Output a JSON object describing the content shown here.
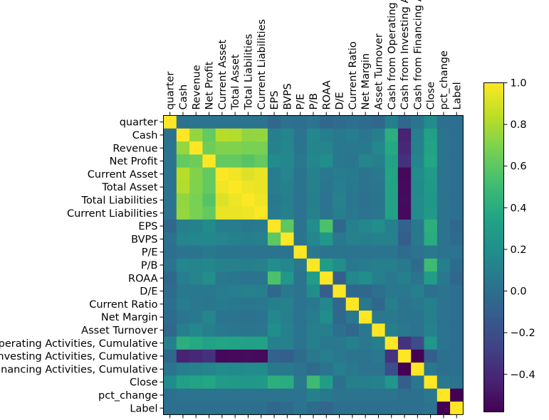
{
  "chart_data": {
    "type": "heatmap",
    "title": "",
    "xlabel": "",
    "ylabel": "",
    "x_tick_labels": [
      "quarter",
      "Cash",
      "Revenue",
      "Net Profit",
      "Current Asset",
      "Total Asset",
      "Total Liabilities",
      "Current Liabilities",
      "EPS",
      "BVPS",
      "P/E",
      "P/B",
      "ROAA",
      "D/E",
      "Current Ratio",
      "Net Margin",
      "Asset Turnover",
      "Cash from Operating Activities, Cumulative",
      "Cash from Investing Activities, Cumulative",
      "Cash from Financing Activities, Cumulative",
      "Close",
      "pct_change",
      "Label"
    ],
    "y_tick_labels": [
      "quarter",
      "Cash",
      "Revenue",
      "Net Profit",
      "Current Asset",
      "Total Asset",
      "Total Liabilities",
      "Current Liabilities",
      "EPS",
      "BVPS",
      "P/E",
      "P/B",
      "ROAA",
      "D/E",
      "Current Ratio",
      "Net Margin",
      "Asset Turnover",
      "Cash from Operating Activities, Cumulative",
      "Cash from Investing Activities, Cumulative",
      "Cash from Financing Activities, Cumulative",
      "Close",
      "pct_change",
      "Label"
    ],
    "colorbar": {
      "range": [
        -0.58,
        1.0
      ],
      "ticks": [
        -0.4,
        -0.2,
        0.0,
        0.2,
        0.4,
        0.6,
        0.8,
        1.0
      ],
      "tick_labels": [
        "−0.4",
        "−0.2",
        "0.0",
        "0.2",
        "0.4",
        "0.6",
        "0.8",
        "1.0"
      ],
      "colormap": "viridis"
    },
    "matrix": [
      [
        1.0,
        0.01,
        0.02,
        0.03,
        0.02,
        0.02,
        0.02,
        0.02,
        -0.05,
        0.01,
        0.0,
        0.02,
        -0.05,
        -0.03,
        0.0,
        -0.02,
        -0.06,
        0.1,
        -0.05,
        0.03,
        0.18,
        0.0,
        0.0
      ],
      [
        0.01,
        1.0,
        0.75,
        0.62,
        0.83,
        0.82,
        0.74,
        0.75,
        0.1,
        0.14,
        0.02,
        0.15,
        0.09,
        0.05,
        0.08,
        0.04,
        0.1,
        0.42,
        -0.43,
        0.1,
        0.32,
        0.02,
        0.0
      ],
      [
        0.02,
        0.75,
        1.0,
        0.65,
        0.7,
        0.7,
        0.68,
        0.68,
        0.12,
        0.15,
        0.03,
        0.14,
        0.13,
        0.06,
        0.05,
        0.06,
        0.15,
        0.38,
        -0.4,
        0.12,
        0.34,
        0.02,
        0.0
      ],
      [
        0.03,
        0.62,
        0.65,
        1.0,
        0.62,
        0.62,
        0.58,
        0.62,
        0.18,
        0.15,
        0.05,
        0.15,
        0.2,
        0.05,
        0.04,
        0.14,
        0.1,
        0.33,
        -0.36,
        0.14,
        0.36,
        0.02,
        0.0
      ],
      [
        0.02,
        0.83,
        0.7,
        0.62,
        1.0,
        0.97,
        0.92,
        0.95,
        0.08,
        0.13,
        0.03,
        0.12,
        0.05,
        0.08,
        0.07,
        0.02,
        0.05,
        0.35,
        -0.55,
        0.18,
        0.28,
        0.02,
        0.0
      ],
      [
        0.02,
        0.82,
        0.7,
        0.62,
        0.97,
        1.0,
        0.96,
        0.95,
        0.08,
        0.12,
        0.02,
        0.11,
        0.04,
        0.09,
        0.06,
        0.02,
        0.04,
        0.34,
        -0.54,
        0.17,
        0.27,
        0.02,
        0.0
      ],
      [
        0.02,
        0.74,
        0.68,
        0.58,
        0.92,
        0.96,
        1.0,
        0.96,
        0.06,
        0.1,
        0.02,
        0.1,
        0.02,
        0.11,
        0.04,
        0.01,
        0.03,
        0.33,
        -0.53,
        0.18,
        0.26,
        0.02,
        0.0
      ],
      [
        0.02,
        0.75,
        0.68,
        0.62,
        0.95,
        0.95,
        0.96,
        1.0,
        0.07,
        0.11,
        0.02,
        0.11,
        0.03,
        0.1,
        0.05,
        0.02,
        0.04,
        0.33,
        -0.54,
        0.18,
        0.27,
        0.02,
        0.0
      ],
      [
        -0.05,
        0.1,
        0.12,
        0.18,
        0.08,
        0.08,
        0.06,
        0.07,
        1.0,
        0.6,
        0.02,
        0.2,
        0.55,
        -0.05,
        0.1,
        0.15,
        0.2,
        0.1,
        -0.08,
        0.05,
        0.42,
        0.02,
        -0.05
      ],
      [
        0.01,
        0.14,
        0.15,
        0.15,
        0.13,
        0.12,
        0.1,
        0.11,
        0.6,
        1.0,
        0.03,
        0.15,
        0.25,
        0.05,
        0.12,
        0.1,
        0.12,
        0.12,
        -0.1,
        0.06,
        0.4,
        0.02,
        -0.02
      ],
      [
        0.0,
        0.02,
        0.03,
        0.05,
        0.03,
        0.02,
        0.02,
        0.02,
        0.02,
        0.03,
        1.0,
        0.05,
        0.02,
        0.03,
        0.02,
        0.02,
        0.02,
        0.02,
        -0.02,
        0.02,
        0.05,
        0.02,
        0.02
      ],
      [
        0.02,
        0.15,
        0.14,
        0.15,
        0.12,
        0.11,
        0.1,
        0.11,
        0.2,
        0.15,
        0.05,
        1.0,
        0.3,
        0.2,
        0.05,
        0.08,
        0.1,
        0.1,
        0.05,
        -0.03,
        0.5,
        0.1,
        -0.02
      ],
      [
        -0.05,
        0.09,
        0.13,
        0.2,
        0.05,
        0.04,
        0.02,
        0.03,
        0.55,
        0.25,
        0.02,
        0.3,
        1.0,
        -0.1,
        0.15,
        0.2,
        0.1,
        0.05,
        0.1,
        0.02,
        0.3,
        0.06,
        -0.06
      ],
      [
        -0.03,
        0.05,
        0.06,
        0.05,
        0.08,
        0.09,
        0.11,
        0.1,
        -0.05,
        0.05,
        0.03,
        0.2,
        -0.1,
        1.0,
        -0.05,
        -0.05,
        0.0,
        0.05,
        0.05,
        0.1,
        0.0,
        0.02,
        0.0
      ],
      [
        0.0,
        0.08,
        0.05,
        0.04,
        0.07,
        0.06,
        0.04,
        0.05,
        0.1,
        0.12,
        0.02,
        0.05,
        0.15,
        -0.05,
        1.0,
        0.05,
        -0.05,
        0.1,
        0.02,
        0.05,
        0.1,
        0.02,
        0.0
      ],
      [
        -0.02,
        0.04,
        0.06,
        0.14,
        0.02,
        0.02,
        0.01,
        0.02,
        0.15,
        0.1,
        0.02,
        0.08,
        0.2,
        -0.05,
        0.05,
        1.0,
        0.05,
        0.05,
        0.02,
        0.02,
        0.1,
        0.02,
        0.0
      ],
      [
        -0.06,
        0.1,
        0.15,
        0.1,
        0.05,
        0.04,
        0.03,
        0.04,
        0.2,
        0.12,
        0.02,
        0.1,
        0.1,
        0.0,
        -0.05,
        0.05,
        1.0,
        0.1,
        0.05,
        0.02,
        0.12,
        0.02,
        0.0
      ],
      [
        0.1,
        0.42,
        0.38,
        0.33,
        0.35,
        0.34,
        0.33,
        0.33,
        0.1,
        0.12,
        0.02,
        0.1,
        0.05,
        0.05,
        0.1,
        0.05,
        0.1,
        1.0,
        -0.35,
        -0.2,
        0.25,
        0.02,
        0.0
      ],
      [
        -0.05,
        -0.43,
        -0.4,
        -0.36,
        -0.55,
        -0.54,
        -0.53,
        -0.54,
        -0.08,
        -0.1,
        -0.02,
        0.05,
        0.1,
        0.05,
        0.02,
        0.02,
        0.05,
        -0.35,
        1.0,
        -0.58,
        -0.1,
        0.0,
        0.0
      ],
      [
        0.03,
        0.1,
        0.12,
        0.14,
        0.18,
        0.17,
        0.18,
        0.18,
        0.05,
        0.06,
        0.02,
        -0.03,
        0.02,
        0.1,
        0.05,
        0.02,
        0.02,
        -0.2,
        -0.58,
        1.0,
        0.05,
        0.0,
        0.0
      ],
      [
        0.18,
        0.32,
        0.34,
        0.36,
        0.28,
        0.27,
        0.26,
        0.27,
        0.42,
        0.4,
        0.05,
        0.5,
        0.3,
        0.0,
        0.1,
        0.1,
        0.12,
        0.25,
        -0.1,
        0.05,
        1.0,
        0.05,
        0.02
      ],
      [
        0.0,
        0.02,
        0.02,
        0.02,
        0.02,
        0.02,
        0.02,
        0.02,
        0.02,
        0.02,
        0.02,
        0.1,
        0.06,
        0.02,
        0.02,
        0.02,
        0.02,
        0.02,
        0.0,
        0.0,
        0.05,
        1.0,
        -0.58
      ],
      [
        0.0,
        0.0,
        0.0,
        0.0,
        0.0,
        0.0,
        0.0,
        0.0,
        -0.05,
        -0.02,
        0.02,
        -0.02,
        -0.06,
        0.0,
        0.0,
        0.0,
        0.0,
        0.0,
        0.0,
        0.0,
        0.02,
        -0.58,
        1.0
      ]
    ]
  }
}
